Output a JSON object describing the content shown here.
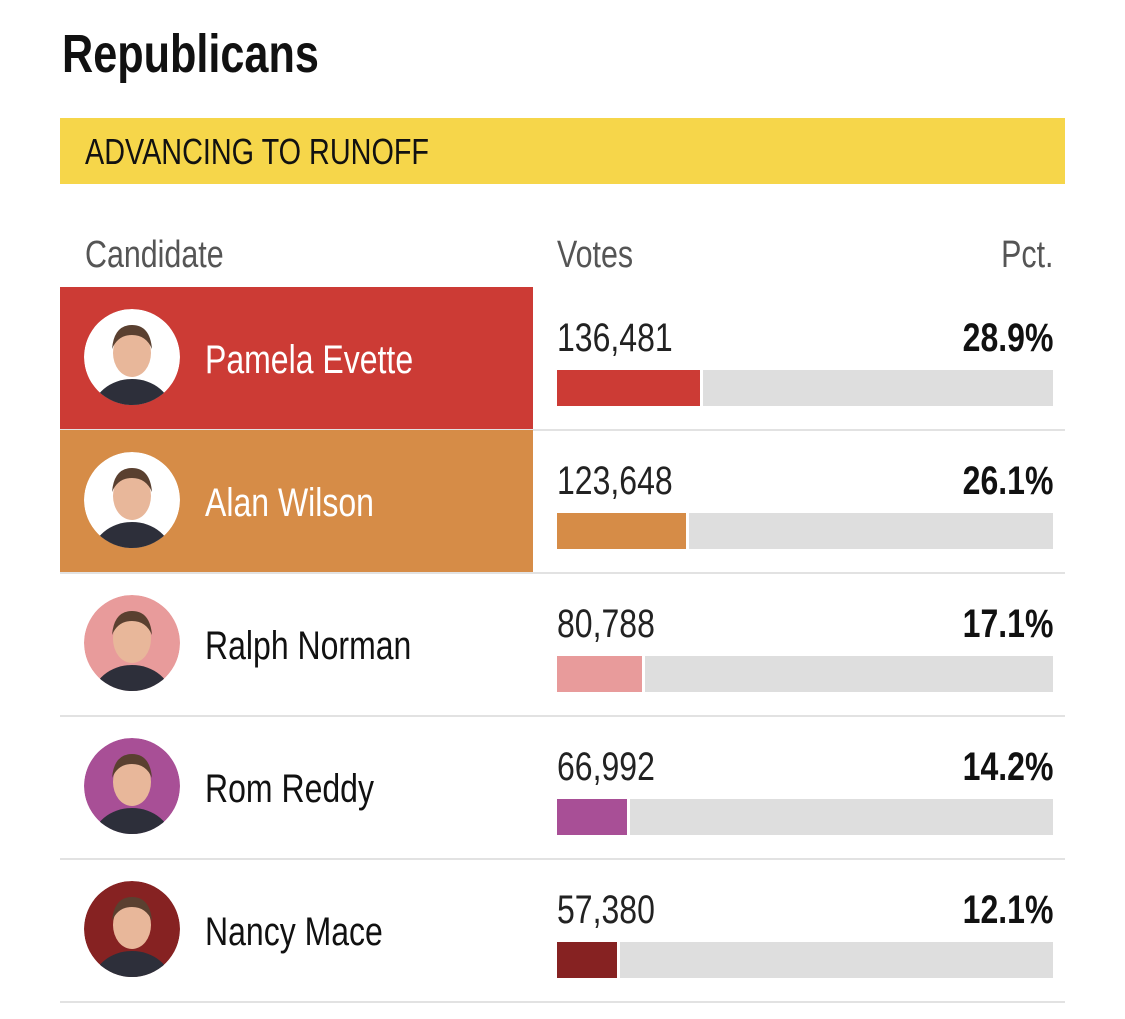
{
  "title": "Republicans",
  "banner": "ADVANCING TO RUNOFF",
  "columns": [
    "Candidate",
    "Votes",
    "Pct."
  ],
  "rows": [
    {
      "name": "Pamela Evette",
      "votes": "136,481",
      "pct": {
        "value": 28.9,
        "label": "28.9%"
      },
      "color": "#cc3b35",
      "highlight": true
    },
    {
      "name": "Alan Wilson",
      "votes": "123,648",
      "pct": {
        "value": 26.1,
        "label": "26.1%"
      },
      "color": "#d68c47",
      "highlight": true
    },
    {
      "name": "Ralph Norman",
      "votes": "80,788",
      "pct": {
        "value": 17.1,
        "label": "17.1%"
      },
      "color": "#e89b9b",
      "highlight": false
    },
    {
      "name": "Rom Reddy",
      "votes": "66,992",
      "pct": {
        "value": 14.2,
        "label": "14.2%"
      },
      "color": "#a84f96",
      "highlight": false
    },
    {
      "name": "Nancy Mace",
      "votes": "57,380",
      "pct": {
        "value": 12.1,
        "label": "12.1%"
      },
      "color": "#862222",
      "highlight": false
    }
  ]
}
